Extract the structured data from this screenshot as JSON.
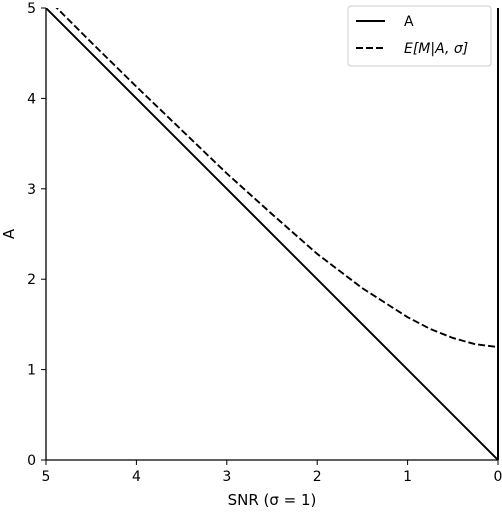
{
  "chart_data": {
    "type": "line",
    "title": "",
    "xlabel": "SNR (σ = 1)",
    "ylabel": "A",
    "xlim": [
      5,
      0
    ],
    "ylim": [
      0,
      5
    ],
    "x_inverted": true,
    "xticks": [
      5,
      4,
      3,
      2,
      1,
      0
    ],
    "yticks": [
      0,
      1,
      2,
      3,
      4,
      5
    ],
    "grid": false,
    "legend_position": "top-right",
    "series": [
      {
        "name": "A",
        "style": "solid",
        "color": "#000000",
        "x": [
          5,
          0
        ],
        "y": [
          5,
          0
        ]
      },
      {
        "name": "E[M|A, σ]",
        "style": "dashed",
        "color": "#000000",
        "x": [
          5.0,
          4.5,
          4.0,
          3.5,
          3.0,
          2.5,
          2.0,
          1.5,
          1.0,
          0.75,
          0.5,
          0.25,
          0.0
        ],
        "y": [
          5.12,
          4.62,
          4.13,
          3.65,
          3.17,
          2.72,
          2.28,
          1.9,
          1.58,
          1.45,
          1.35,
          1.28,
          1.25
        ]
      }
    ]
  }
}
